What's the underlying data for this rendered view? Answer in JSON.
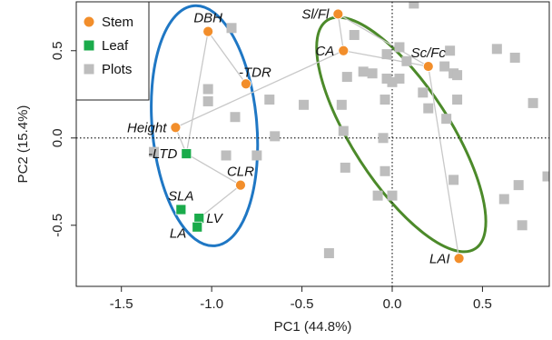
{
  "chart_data": {
    "type": "scatter",
    "xlabel": "PC1 (44.8%)",
    "ylabel": "PC2 (15.4%)",
    "xlim": [
      -1.75,
      0.87
    ],
    "ylim": [
      -0.85,
      0.78
    ],
    "xticks": [
      -1.5,
      -1.0,
      -0.5,
      0.0,
      0.5
    ],
    "xtick_labels": [
      "-1.5",
      "-1.0",
      "-0.5",
      "0.0",
      "0.5"
    ],
    "yticks": [
      -0.5,
      0.0,
      0.5
    ],
    "ytick_labels": [
      "-0.5",
      "0.0",
      "0.5"
    ],
    "reference_lines": {
      "x": 0,
      "y": 0,
      "style": "dotted"
    },
    "legend": {
      "position": "top-left",
      "entries": [
        {
          "label": "Stem",
          "marker": "circle",
          "color": "#f28e2b"
        },
        {
          "label": "Leaf",
          "marker": "square",
          "color": "#1aab4b"
        },
        {
          "label": "Plots",
          "marker": "square",
          "color": "#bdbdbd"
        }
      ]
    },
    "colors": {
      "stem": "#f28e2b",
      "leaf": "#1aab4b",
      "plots": "#bdbdbd",
      "segments": "#c8c8c8",
      "ellipse_left": "#1f77c4",
      "ellipse_right": "#4c8a2a"
    },
    "series": [
      {
        "name": "Stem",
        "marker": "circle",
        "points": [
          {
            "label": "DBH",
            "x": -1.02,
            "y": 0.61
          },
          {
            "label": "-TDR",
            "x": -0.81,
            "y": 0.31
          },
          {
            "label": "Height",
            "x": -1.2,
            "y": 0.06
          },
          {
            "label": "CLR",
            "x": -0.84,
            "y": -0.27
          },
          {
            "label": "Sl/Fl",
            "x": -0.3,
            "y": 0.71
          },
          {
            "label": "CA",
            "x": -0.27,
            "y": 0.5
          },
          {
            "label": "Sc/Fc",
            "x": 0.2,
            "y": 0.41
          },
          {
            "label": "LAI",
            "x": 0.37,
            "y": -0.69
          }
        ]
      },
      {
        "name": "Leaf",
        "marker": "square",
        "points": [
          {
            "label": "-LTD",
            "x": -1.14,
            "y": -0.09
          },
          {
            "label": "SLA",
            "x": -1.17,
            "y": -0.41
          },
          {
            "label": "LV",
            "x": -1.07,
            "y": -0.46
          },
          {
            "label": "LA",
            "x": -1.08,
            "y": -0.51
          }
        ]
      },
      {
        "name": "Plots",
        "marker": "square",
        "points": [
          {
            "x": 0.12,
            "y": 0.77
          },
          {
            "x": -0.89,
            "y": 0.63
          },
          {
            "x": -0.21,
            "y": 0.59
          },
          {
            "x": 0.04,
            "y": 0.52
          },
          {
            "x": -0.03,
            "y": 0.48
          },
          {
            "x": 0.32,
            "y": 0.5
          },
          {
            "x": 0.58,
            "y": 0.51
          },
          {
            "x": 0.68,
            "y": 0.46
          },
          {
            "x": 0.08,
            "y": 0.44
          },
          {
            "x": -0.11,
            "y": 0.37
          },
          {
            "x": -0.16,
            "y": 0.38
          },
          {
            "x": -0.25,
            "y": 0.35
          },
          {
            "x": 0.29,
            "y": 0.41
          },
          {
            "x": 0.34,
            "y": 0.37
          },
          {
            "x": -0.03,
            "y": 0.34
          },
          {
            "x": 0.04,
            "y": 0.34
          },
          {
            "x": 0.36,
            "y": 0.36
          },
          {
            "x": 0.0,
            "y": 0.32
          },
          {
            "x": -0.68,
            "y": 0.22
          },
          {
            "x": -0.04,
            "y": 0.22
          },
          {
            "x": 0.17,
            "y": 0.26
          },
          {
            "x": 0.36,
            "y": 0.22
          },
          {
            "x": -0.87,
            "y": 0.12
          },
          {
            "x": -1.02,
            "y": 0.28
          },
          {
            "x": -1.02,
            "y": 0.21
          },
          {
            "x": -0.28,
            "y": 0.19
          },
          {
            "x": -0.49,
            "y": 0.19
          },
          {
            "x": -0.27,
            "y": 0.04
          },
          {
            "x": -0.05,
            "y": 0.0
          },
          {
            "x": -0.65,
            "y": 0.01
          },
          {
            "x": 0.2,
            "y": 0.17
          },
          {
            "x": 0.78,
            "y": 0.2
          },
          {
            "x": 0.3,
            "y": 0.11
          },
          {
            "x": -1.32,
            "y": -0.08
          },
          {
            "x": -0.75,
            "y": -0.1
          },
          {
            "x": -0.92,
            "y": -0.1
          },
          {
            "x": -0.26,
            "y": -0.17
          },
          {
            "x": -0.04,
            "y": -0.19
          },
          {
            "x": 0.34,
            "y": -0.24
          },
          {
            "x": 0.7,
            "y": -0.27
          },
          {
            "x": -0.08,
            "y": -0.33
          },
          {
            "x": 0.0,
            "y": -0.33
          },
          {
            "x": 0.62,
            "y": -0.35
          },
          {
            "x": 0.86,
            "y": -0.22
          },
          {
            "x": -0.35,
            "y": -0.66
          },
          {
            "x": 0.72,
            "y": -0.5
          }
        ]
      }
    ],
    "ellipses": [
      {
        "group": "left",
        "cx": -1.04,
        "cy": 0.07,
        "rx": 0.29,
        "ry": 0.69,
        "angle_deg": -5,
        "color": "#1f77c4"
      },
      {
        "group": "right",
        "cx": 0.05,
        "cy": 0.02,
        "rx": 0.27,
        "ry": 0.78,
        "angle_deg": -33,
        "color": "#4c8a2a"
      }
    ],
    "segments": [
      {
        "from": "DBH",
        "to": "-TDR"
      },
      {
        "from": "DBH",
        "to": "-LTD"
      },
      {
        "from": "Height",
        "to": "-LTD"
      },
      {
        "from": "Height",
        "to": "CA"
      },
      {
        "from": "-LTD",
        "to": "CLR"
      },
      {
        "from": "CLR",
        "to": "LV"
      },
      {
        "from": "Sl/Fl",
        "to": "CA"
      },
      {
        "from": "Sl/Fl",
        "to": "Sc/Fc"
      },
      {
        "from": "Sc/Fc",
        "to": "LAI"
      },
      {
        "from": "Sc/Fc",
        "to": "CA"
      }
    ],
    "label_placement": {
      "DBH": "above",
      "-TDR": "above-right",
      "Height": "left",
      "CLR": "above",
      "Sl/Fl": "left",
      "CA": "left",
      "Sc/Fc": "above",
      "LAI": "left",
      "-LTD": "left",
      "SLA": "above",
      "LV": "right",
      "LA": "below-left"
    },
    "grid": false
  }
}
